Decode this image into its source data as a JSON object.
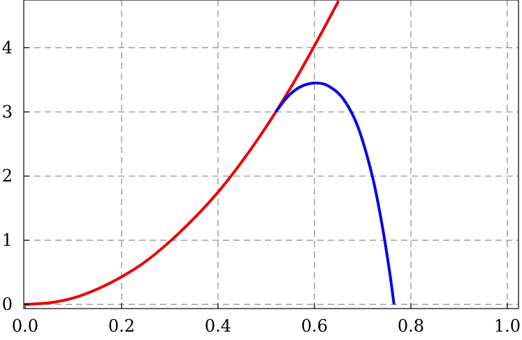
{
  "chart_data": {
    "type": "line",
    "title": "",
    "xlabel": "",
    "ylabel": "",
    "xlim": [
      0.0,
      1.0
    ],
    "ylim": [
      0.0,
      4.6
    ],
    "grid": true,
    "xticks": [
      0.0,
      0.2,
      0.4,
      0.6,
      0.8,
      1.0
    ],
    "xtick_labels": [
      "0.0",
      "0.2",
      "0.4",
      "0.6",
      "0.8",
      "1.0"
    ],
    "yticks": [
      0,
      1,
      2,
      3,
      4
    ],
    "ytick_labels": [
      "0",
      "1",
      "2",
      "3",
      "4"
    ],
    "series": [
      {
        "color": "#ee0000",
        "x": [
          0.0,
          0.05,
          0.1,
          0.15,
          0.2,
          0.25,
          0.3,
          0.35,
          0.4,
          0.45,
          0.5,
          0.55,
          0.6,
          0.65
        ],
        "y": [
          0.0,
          0.024,
          0.1,
          0.24,
          0.43,
          0.67,
          0.98,
          1.34,
          1.75,
          2.23,
          2.77,
          3.37,
          4.03,
          4.73
        ]
      },
      {
        "color": "#0000ee",
        "x": [
          0.52,
          0.54,
          0.56,
          0.58,
          0.605,
          0.63,
          0.66,
          0.69,
          0.72,
          0.74,
          0.755,
          0.765
        ],
        "y": [
          3.0,
          3.2,
          3.34,
          3.42,
          3.45,
          3.4,
          3.2,
          2.77,
          2.0,
          1.25,
          0.55,
          0.0
        ]
      }
    ]
  }
}
